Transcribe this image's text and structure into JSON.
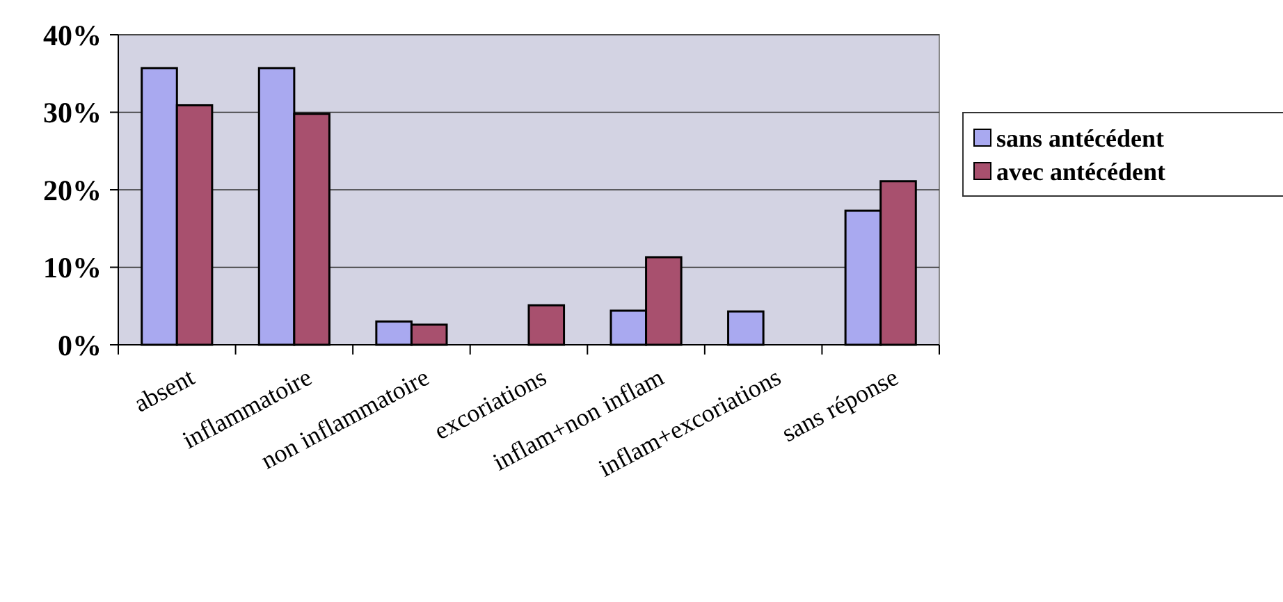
{
  "chart_data": {
    "type": "bar",
    "categories": [
      "absent",
      "inflammatoire",
      "non inflammatoire",
      "excoriations",
      "inflam+non inflam",
      "inflam+excoriations",
      "sans réponse"
    ],
    "series": [
      {
        "name": "sans antécédent",
        "color": "#a9a9f0",
        "values": [
          35.7,
          35.7,
          3.0,
          0,
          4.4,
          4.3,
          17.3
        ]
      },
      {
        "name": "avec antécédent",
        "color": "#a8506e",
        "values": [
          30.9,
          29.8,
          2.6,
          5.1,
          11.3,
          0,
          21.1
        ]
      }
    ],
    "ylim": [
      0,
      40
    ],
    "yticks": [
      {
        "value": 0,
        "label": "0%"
      },
      {
        "value": 10,
        "label": "10%"
      },
      {
        "value": 20,
        "label": "20%"
      },
      {
        "value": 30,
        "label": "30%"
      },
      {
        "value": 40,
        "label": "40%"
      }
    ],
    "grid": "y",
    "legend": "right"
  }
}
